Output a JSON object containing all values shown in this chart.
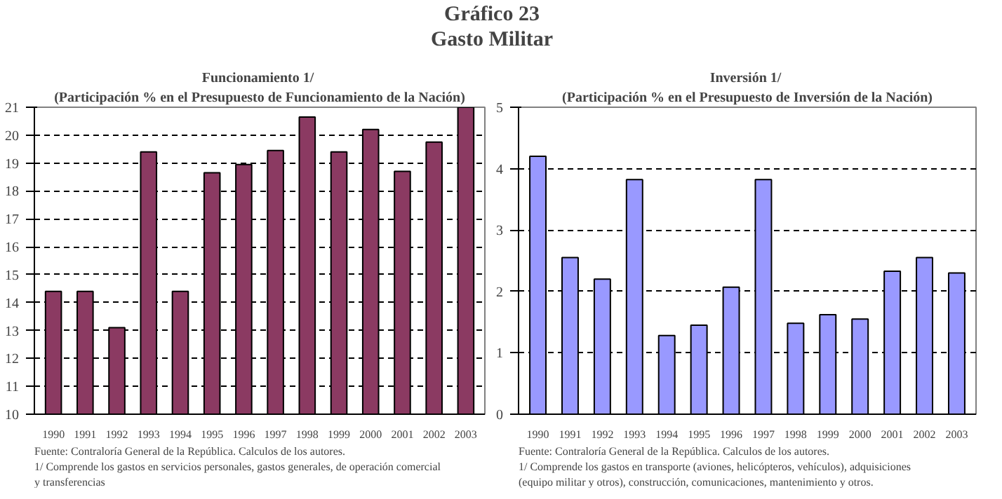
{
  "chart_data": [
    {
      "type": "other",
      "title": "Gráfico 23",
      "subtitle": "Gasto Militar"
    },
    {
      "type": "bar",
      "title": "Funcionamiento  1/",
      "subtitle": "(Participación % en el Presupuesto de Funcionamiento de la Nación)",
      "categories": [
        "1990",
        "1991",
        "1992",
        "1993",
        "1994",
        "1995",
        "1996",
        "1997",
        "1998",
        "1999",
        "2000",
        "2001",
        "2002",
        "2003"
      ],
      "values": [
        14.4,
        14.4,
        13.1,
        19.4,
        14.4,
        18.65,
        18.95,
        19.45,
        20.65,
        19.4,
        20.2,
        18.7,
        19.75,
        21
      ],
      "color": "#8b3a62",
      "ylim": [
        10,
        21
      ],
      "yticks": [
        10,
        11,
        12,
        13,
        14,
        15,
        16,
        17,
        18,
        19,
        20,
        21
      ],
      "grid": "y",
      "annotations": [
        "Fuente: Contraloría General de la República. Calculos de los autores.",
        "1/ Comprende los gastos en servicios personales, gastos generales, de operación comercial y transferencias"
      ]
    },
    {
      "type": "bar",
      "title": "Inversión  1/",
      "subtitle": "(Participación % en el Presupuesto de Inversión de la Nación)",
      "categories": [
        "1990",
        "1991",
        "1992",
        "1993",
        "1994",
        "1995",
        "1996",
        "1997",
        "1998",
        "1999",
        "2000",
        "2001",
        "2002",
        "2003"
      ],
      "values": [
        4.2,
        2.55,
        2.2,
        3.82,
        1.28,
        1.45,
        2.07,
        3.82,
        1.48,
        1.62,
        1.55,
        2.33,
        2.55,
        2.3
      ],
      "color": "#9999ff",
      "ylim": [
        0,
        5
      ],
      "yticks": [
        0,
        1,
        2,
        3,
        4,
        5
      ],
      "grid": "y",
      "annotations": [
        "Fuente: Contraloría General de la República. Calculos de los autores.",
        "1/ Comprende los gastos en transporte (aviones, helicópteros, vehículos), adquisiciones (equipo militar y otros), construcción, comunicaciones, mantenimiento y otros."
      ]
    }
  ]
}
